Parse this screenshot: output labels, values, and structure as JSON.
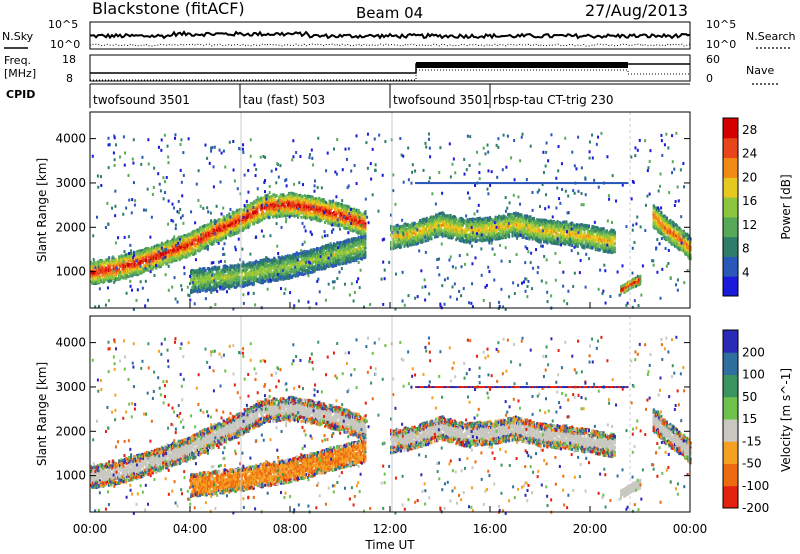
{
  "header": {
    "station": "Blackstone (fitACF)",
    "beam": "Beam 04",
    "date": "27/Aug/2013"
  },
  "noise_panel": {
    "left_label": "N.Sky",
    "right_label": "N.Search",
    "left_ticks": [
      "10^5",
      "10^0"
    ],
    "right_ticks": [
      "10^5",
      "10^0"
    ]
  },
  "freq_panel": {
    "left_label_line1": "Freq.",
    "left_label_line2": "[MHz]",
    "right_label": "Nave",
    "left_ticks": [
      "18",
      "8"
    ],
    "right_ticks": [
      "60",
      "0"
    ]
  },
  "cpid": {
    "label": "CPID",
    "segments": [
      {
        "name": "twofsound 3501",
        "start_hour": 0.0
      },
      {
        "name": "tau (fast) 503",
        "start_hour": 6.0
      },
      {
        "name": "twofsound 3501",
        "start_hour": 12.0
      },
      {
        "name": "rbsp-tau CT-trig 230",
        "start_hour": 16.0
      }
    ]
  },
  "chart_data": [
    {
      "type": "heatmap",
      "title": "Power",
      "ylabel": "Slant Range [km]",
      "xlabel": "Time UT",
      "xlim": [
        0,
        24
      ],
      "ylim": [
        180,
        4600
      ],
      "x_ticks": [
        "00:00",
        "04:00",
        "08:00",
        "12:00",
        "16:00",
        "20:00",
        "00:00"
      ],
      "y_ticks": [
        1000,
        2000,
        3000,
        4000
      ],
      "colorbar": {
        "label": "Power [dB]",
        "ticks": [
          4,
          8,
          12,
          16,
          20,
          24,
          28
        ],
        "range": [
          0,
          30
        ],
        "colors": [
          "#1a1adc",
          "#2a58b8",
          "#2e7d6a",
          "#58a85a",
          "#8cc63f",
          "#e6c81e",
          "#f08a14",
          "#e8451a",
          "#d40000"
        ]
      },
      "features": [
        {
          "name": "main echo band",
          "hours": [
            0,
            1,
            2,
            3,
            4,
            5,
            6,
            7,
            8,
            9,
            10,
            11
          ],
          "range_km": [
            1000,
            1100,
            1250,
            1450,
            1650,
            1950,
            2200,
            2500,
            2550,
            2450,
            2300,
            2100
          ],
          "peak_db": 28
        },
        {
          "name": "lower band",
          "hours": [
            4,
            5,
            6,
            7,
            8,
            9,
            10,
            11
          ],
          "range_km": [
            820,
            880,
            950,
            1050,
            1150,
            1300,
            1450,
            1600
          ],
          "peak_db": 16
        },
        {
          "name": "afternoon band",
          "hours": [
            12,
            13,
            14,
            15,
            16,
            17,
            18,
            19,
            20,
            21
          ],
          "range_km": [
            1800,
            1900,
            2100,
            1950,
            2000,
            2100,
            1950,
            1900,
            1800,
            1700
          ],
          "peak_db": 20
        },
        {
          "name": "ground scatter",
          "hours": [
            21.2,
            21.6,
            22.0
          ],
          "range_km": [
            600,
            750,
            850
          ],
          "peak_db": 30
        },
        {
          "name": "late band",
          "hours": [
            22.5,
            23.0,
            23.5,
            24.0
          ],
          "range_km": [
            2300,
            2000,
            1800,
            1550
          ],
          "peak_db": 24
        }
      ]
    },
    {
      "type": "heatmap",
      "title": "Velocity",
      "ylabel": "Slant Range [km]",
      "xlabel": "Time UT",
      "xlim": [
        0,
        24
      ],
      "ylim": [
        180,
        4600
      ],
      "x_ticks": [
        "00:00",
        "04:00",
        "08:00",
        "12:00",
        "16:00",
        "20:00",
        "00:00"
      ],
      "y_ticks": [
        1000,
        2000,
        3000,
        4000
      ],
      "colorbar": {
        "label": "Velocity [m s^-1]",
        "ticks": [
          200,
          100,
          50,
          15,
          -15,
          -50,
          -100,
          -200
        ],
        "colors": [
          "#2a2ab8",
          "#2e6fa0",
          "#3a9460",
          "#6cc24a",
          "#c8c8c0",
          "#f5a020",
          "#ee6a10",
          "#e4200e"
        ]
      }
    }
  ]
}
